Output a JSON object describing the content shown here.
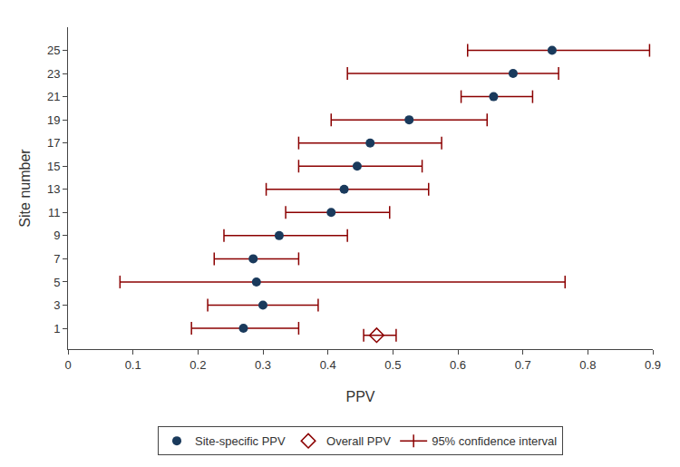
{
  "chart_data": {
    "type": "forest",
    "xlabel": "PPV",
    "ylabel": "Site number",
    "xlim": [
      0,
      0.9
    ],
    "xticks": [
      0,
      0.1,
      0.2,
      0.3,
      0.4,
      0.5,
      0.6,
      0.7,
      0.8,
      0.9
    ],
    "ylim": [
      -0.8,
      27
    ],
    "yticks": [
      1,
      3,
      5,
      7,
      9,
      11,
      13,
      15,
      17,
      19,
      21,
      23,
      25
    ],
    "grid": false,
    "legend": "bottom",
    "series": [
      {
        "name": "Site-specific PPV",
        "type": "scatter",
        "color": "#1a3a5c",
        "marker": "circle",
        "y": [
          1,
          3,
          5,
          7,
          9,
          11,
          13,
          15,
          17,
          19,
          21,
          23,
          25
        ],
        "values": [
          0.27,
          0.3,
          0.29,
          0.285,
          0.325,
          0.405,
          0.425,
          0.445,
          0.465,
          0.525,
          0.655,
          0.685,
          0.745
        ]
      },
      {
        "name": "Overall PPV",
        "type": "scatter",
        "color": "#8b0000",
        "marker": "open_diamond",
        "y": [
          0.4
        ],
        "values": [
          0.475
        ]
      },
      {
        "name": "95% confidence interval",
        "type": "interval",
        "color": "#8b0000",
        "marker": "cap",
        "line_style": "solid",
        "y": [
          1,
          3,
          5,
          7,
          9,
          11,
          13,
          15,
          17,
          19,
          21,
          23,
          25,
          0.4
        ],
        "ci_low": [
          0.19,
          0.215,
          0.08,
          0.225,
          0.24,
          0.335,
          0.305,
          0.355,
          0.355,
          0.405,
          0.605,
          0.43,
          0.615,
          0.455
        ],
        "ci_high": [
          0.355,
          0.385,
          0.765,
          0.355,
          0.43,
          0.495,
          0.555,
          0.545,
          0.575,
          0.645,
          0.715,
          0.755,
          0.895,
          0.505
        ]
      }
    ]
  }
}
